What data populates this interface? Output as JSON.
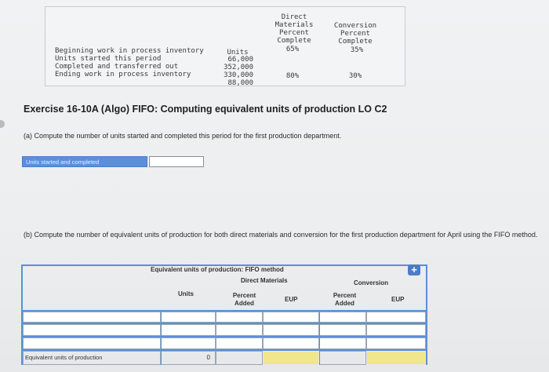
{
  "data_table": {
    "headers": {
      "units": "Units",
      "dm": [
        "Direct",
        "Materials",
        "Percent",
        "Complete"
      ],
      "conv": [
        "Conversion",
        "Percent",
        "Complete"
      ]
    },
    "rows": [
      {
        "label": "Beginning work in process inventory",
        "units": "66,000",
        "dm": "65%",
        "conv": "35%"
      },
      {
        "label": "Units started this period",
        "units": "352,000",
        "dm": "",
        "conv": ""
      },
      {
        "label": "Completed and transferred out",
        "units": "330,000",
        "dm": "",
        "conv": ""
      },
      {
        "label": "Ending work in process inventory",
        "units": "88,000",
        "dm": "80%",
        "conv": "30%"
      }
    ]
  },
  "exercise_title": "Exercise 16-10A (Algo) FIFO: Computing equivalent units of production LO C2",
  "part_a": {
    "question": "(a) Compute the number of units started and completed this period for the first production department.",
    "label": "Units started and completed",
    "value": ""
  },
  "part_b": {
    "question": "(b) Compute the number of equivalent units of production for both direct materials and conversion for the first production department for April using the FIFO method.",
    "table_title": "Equivalent units of production: FIFO method",
    "dm_header": "Direct Materials",
    "conv_header": "Conversion",
    "col_units": "Units",
    "col_dm_pct": [
      "Percent",
      "Added"
    ],
    "col_dm_eup": "EUP",
    "col_conv_pct": [
      "Percent",
      "Added"
    ],
    "col_conv_eup": "EUP",
    "total_label": "Equivalent units of production",
    "total_units": "0",
    "add_symbol": "+"
  },
  "colors": {
    "accent_blue": "#5b8fd9",
    "highlight_yellow": "#f0e68c"
  }
}
